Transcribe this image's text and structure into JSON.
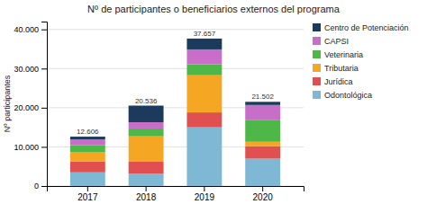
{
  "chart_data": {
    "type": "bar",
    "stacked": true,
    "title": "Nº de participantes o beneficiarios externos del programa",
    "categories": [
      "2017",
      "2018",
      "2019",
      "2020"
    ],
    "series": [
      {
        "name": "Odontológica",
        "color": "#7EB8D4",
        "values": [
          3500,
          3200,
          15000,
          7000
        ]
      },
      {
        "name": "Jurídica",
        "color": "#E05050",
        "values": [
          2800,
          3000,
          3800,
          3200
        ]
      },
      {
        "name": "Tributaria",
        "color": "#F5A623",
        "values": [
          2300,
          6500,
          9500,
          1100
        ]
      },
      {
        "name": "Veterinaria",
        "color": "#4DB848",
        "values": [
          1800,
          2000,
          2800,
          5500
        ]
      },
      {
        "name": "CAPSI",
        "color": "#C86DC8",
        "values": [
          1500,
          1600,
          3800,
          3900
        ]
      },
      {
        "name": "Centro de Potenciación",
        "color": "#1B3A5C",
        "values": [
          706,
          4236,
          2757,
          802
        ]
      }
    ],
    "totals": [
      12606,
      20536,
      37657,
      21502
    ],
    "total_labels": [
      "12.606",
      "20.536",
      "37.657",
      "21.502"
    ],
    "ylabel": "Nº participantes",
    "ylim": [
      0,
      42000
    ],
    "yticks": [
      0,
      {
        "value": 10000,
        "label": "10.000"
      },
      {
        "value": 20000,
        "label": "20.000"
      },
      {
        "value": 30000,
        "label": "30.000"
      },
      {
        "value": 40000,
        "label": "40.000"
      }
    ],
    "grid": true,
    "legend": "right"
  }
}
